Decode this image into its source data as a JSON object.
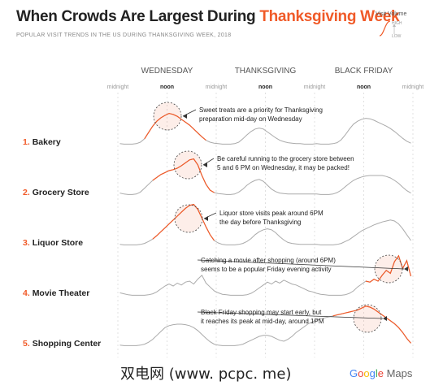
{
  "header": {
    "title_main": "When Crowds Are Largest During ",
    "title_highlight": "Thanksgiving Week",
    "subtitle": "POPULAR VISIT TRENDS IN THE US DURING THANKSGIVING WEEK, 2018"
  },
  "legend": {
    "title": "Visit Volume",
    "high": "HIGH",
    "low": "LOW"
  },
  "watermark": "双电网 (www. pcpc. me)",
  "brand": {
    "google": [
      "G",
      "o",
      "o",
      "g",
      "l",
      "e"
    ],
    "google_colors": [
      "#4285F4",
      "#EA4335",
      "#FBBC05",
      "#4285F4",
      "#34A853",
      "#EA4335"
    ],
    "maps": "Maps"
  },
  "colors": {
    "accent": "#f05a28",
    "line_gray": "#aaaaaa",
    "grid": "#cccccc"
  },
  "chart_data": {
    "type": "line",
    "days": [
      "WEDNESDAY",
      "THANKSGIVING",
      "BLACK FRIDAY"
    ],
    "ticks": [
      "midnight",
      "noon",
      "midnight",
      "noon",
      "midnight",
      "noon",
      "midnight"
    ],
    "tick_hours": [
      0,
      12,
      24,
      36,
      48,
      60,
      72
    ],
    "x_unit": "hours since Wednesday midnight",
    "series": [
      {
        "name": "1. Bakery",
        "values": [
          0.02,
          0.01,
          0.01,
          0.01,
          0.02,
          0.05,
          0.12,
          0.25,
          0.38,
          0.48,
          0.55,
          0.6,
          0.64,
          0.62,
          0.58,
          0.52,
          0.46,
          0.4,
          0.32,
          0.24,
          0.16,
          0.09,
          0.05,
          0.03,
          0.02,
          0.01,
          0.01,
          0.01,
          0.02,
          0.05,
          0.12,
          0.2,
          0.27,
          0.32,
          0.34,
          0.32,
          0.26,
          0.2,
          0.14,
          0.09,
          0.06,
          0.04,
          0.03,
          0.02,
          0.02,
          0.01,
          0.01,
          0.01,
          0.02,
          0.01,
          0.01,
          0.01,
          0.02,
          0.04,
          0.1,
          0.2,
          0.32,
          0.42,
          0.48,
          0.52,
          0.54,
          0.53,
          0.5,
          0.46,
          0.42,
          0.38,
          0.33,
          0.27,
          0.2,
          0.13,
          0.07,
          0.03
        ],
        "annotation": "Sweet treats are a priority for Thanksgiving preparation mid-day on Wednesday",
        "annotation_hour": 11
      },
      {
        "name": "2. Grocery Store",
        "values": [
          0.04,
          0.02,
          0.01,
          0.01,
          0.02,
          0.06,
          0.14,
          0.22,
          0.3,
          0.36,
          0.42,
          0.46,
          0.5,
          0.52,
          0.55,
          0.6,
          0.66,
          0.72,
          0.74,
          0.62,
          0.4,
          0.22,
          0.1,
          0.05,
          0.03,
          0.02,
          0.01,
          0.01,
          0.02,
          0.06,
          0.12,
          0.2,
          0.26,
          0.3,
          0.32,
          0.28,
          0.2,
          0.12,
          0.07,
          0.04,
          0.03,
          0.02,
          0.02,
          0.02,
          0.02,
          0.02,
          0.02,
          0.02,
          0.02,
          0.01,
          0.01,
          0.01,
          0.02,
          0.05,
          0.1,
          0.17,
          0.24,
          0.3,
          0.34,
          0.37,
          0.39,
          0.4,
          0.4,
          0.4,
          0.4,
          0.38,
          0.35,
          0.3,
          0.24,
          0.16,
          0.09,
          0.04
        ],
        "annotation": "Be careful running to the grocery store between 5 and 6 PM on Wednesday, it may be packed!",
        "annotation_hour": 18
      },
      {
        "name": "3. Liquor Store",
        "values": [
          0.02,
          0.01,
          0.01,
          0.01,
          0.01,
          0.02,
          0.04,
          0.08,
          0.13,
          0.2,
          0.28,
          0.36,
          0.44,
          0.52,
          0.6,
          0.68,
          0.76,
          0.82,
          0.84,
          0.74,
          0.56,
          0.38,
          0.22,
          0.1,
          0.05,
          0.02,
          0.01,
          0.01,
          0.01,
          0.02,
          0.04,
          0.08,
          0.14,
          0.22,
          0.28,
          0.32,
          0.34,
          0.32,
          0.26,
          0.18,
          0.11,
          0.06,
          0.04,
          0.03,
          0.02,
          0.02,
          0.02,
          0.02,
          0.02,
          0.01,
          0.01,
          0.01,
          0.01,
          0.02,
          0.04,
          0.08,
          0.12,
          0.18,
          0.24,
          0.3,
          0.34,
          0.38,
          0.42,
          0.45,
          0.48,
          0.5,
          0.52,
          0.5,
          0.44,
          0.34,
          0.22,
          0.1
        ],
        "annotation": "Liquor store visits peak around 6PM the day before Thanksgiving",
        "annotation_hour": 18
      },
      {
        "name": "4. Movie Theater",
        "values": [
          0.06,
          0.04,
          0.02,
          0.01,
          0.01,
          0.01,
          0.01,
          0.02,
          0.04,
          0.08,
          0.14,
          0.2,
          0.24,
          0.2,
          0.26,
          0.22,
          0.28,
          0.3,
          0.24,
          0.34,
          0.42,
          0.26,
          0.18,
          0.1,
          0.06,
          0.03,
          0.02,
          0.01,
          0.01,
          0.01,
          0.01,
          0.02,
          0.05,
          0.1,
          0.16,
          0.22,
          0.28,
          0.24,
          0.3,
          0.26,
          0.32,
          0.28,
          0.24,
          0.22,
          0.18,
          0.14,
          0.1,
          0.08,
          0.05,
          0.03,
          0.02,
          0.01,
          0.01,
          0.01,
          0.01,
          0.02,
          0.05,
          0.1,
          0.18,
          0.24,
          0.3,
          0.28,
          0.34,
          0.3,
          0.42,
          0.52,
          0.46,
          0.7,
          0.82,
          0.56,
          0.72,
          0.4
        ],
        "annotation": "Catching a movie after shopping (around 6PM) seems to be a popular Friday evening activity",
        "annotation_hour": 66
      },
      {
        "name": "5. Shopping Center",
        "values": [
          0.02,
          0.01,
          0.01,
          0.01,
          0.01,
          0.02,
          0.04,
          0.08,
          0.14,
          0.22,
          0.3,
          0.38,
          0.42,
          0.44,
          0.45,
          0.45,
          0.44,
          0.42,
          0.38,
          0.32,
          0.24,
          0.16,
          0.09,
          0.04,
          0.02,
          0.01,
          0.01,
          0.01,
          0.01,
          0.02,
          0.04,
          0.08,
          0.12,
          0.16,
          0.2,
          0.22,
          0.22,
          0.2,
          0.16,
          0.12,
          0.1,
          0.14,
          0.2,
          0.28,
          0.34,
          0.4,
          0.46,
          0.5,
          0.54,
          0.56,
          0.58,
          0.6,
          0.62,
          0.64,
          0.66,
          0.68,
          0.7,
          0.72,
          0.74,
          0.78,
          0.82,
          0.8,
          0.76,
          0.7,
          0.64,
          0.58,
          0.52,
          0.46,
          0.38,
          0.28,
          0.16,
          0.06
        ],
        "annotation": "Black Friday shopping may start early, but it reaches its peak at mid-day, around 1PM",
        "annotation_hour": 61
      }
    ],
    "highlight": {
      "1. Bakery": [
        6,
        22
      ],
      "2. Grocery Store": [
        8,
        24
      ],
      "3. Liquor Store": [
        8,
        24
      ],
      "4. Movie Theater": [
        60,
        72
      ],
      "5. Shopping Center": [
        52,
        72
      ]
    },
    "ylim": [
      0,
      1
    ],
    "grid": "vertical dashed"
  }
}
